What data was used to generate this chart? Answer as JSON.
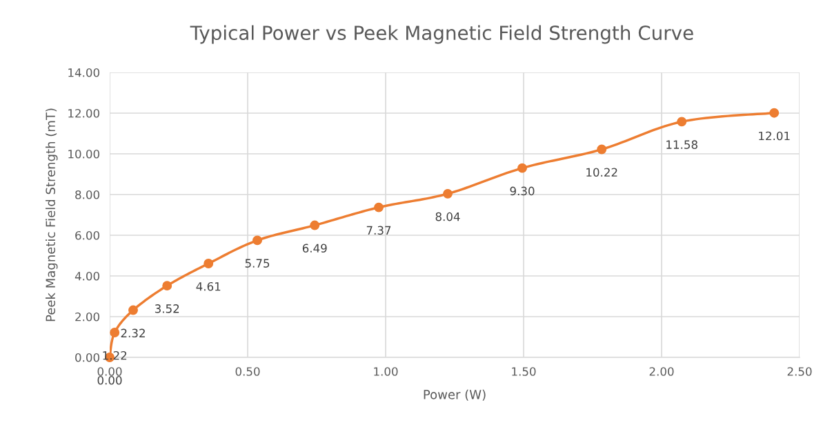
{
  "chart_data": {
    "type": "line",
    "title": "Typical Power vs Peek Magnetic Field Strength Curve",
    "xlabel": "Power (W)",
    "ylabel": "Peek Magnetic Field Strength (mT)",
    "x": [
      0,
      0.018,
      0.085,
      0.208,
      0.358,
      0.535,
      0.743,
      0.975,
      1.225,
      1.495,
      1.783,
      2.073,
      2.408
    ],
    "series": [
      {
        "color": "#ed7d31",
        "values": [
          0,
          1.22,
          2.32,
          3.52,
          4.61,
          5.75,
          6.49,
          7.37,
          8.04,
          9.3,
          10.22,
          11.58,
          12.01
        ],
        "value_labels": [
          "0.00",
          "1.22",
          "2.32",
          "3.52",
          "4.61",
          "5.75",
          "6.49",
          "7.37",
          "8.04",
          "9.30",
          "10.22",
          "11.58",
          "12.01"
        ]
      }
    ],
    "xlim": [
      0,
      2.5
    ],
    "xticks": [
      {
        "value": 0,
        "label": "0.00"
      },
      {
        "value": 0.5,
        "label": "0.50"
      },
      {
        "value": 1,
        "label": "1.00"
      },
      {
        "value": 1.5,
        "label": "1.50"
      },
      {
        "value": 2,
        "label": "2.00"
      },
      {
        "value": 2.5,
        "label": "2.50"
      }
    ],
    "ylim": [
      0,
      14
    ],
    "yticks": [
      {
        "value": 0,
        "label": "0.00"
      },
      {
        "value": 2,
        "label": "2.00"
      },
      {
        "value": 4,
        "label": "4.00"
      },
      {
        "value": 6,
        "label": "6.00"
      },
      {
        "value": 8,
        "label": "8.00"
      },
      {
        "value": 10,
        "label": "10.00"
      },
      {
        "value": 12,
        "label": "12.00"
      },
      {
        "value": 14,
        "label": "14.00"
      }
    ],
    "grid": true,
    "marker": "circle",
    "line_style": "solid",
    "legend": false
  }
}
